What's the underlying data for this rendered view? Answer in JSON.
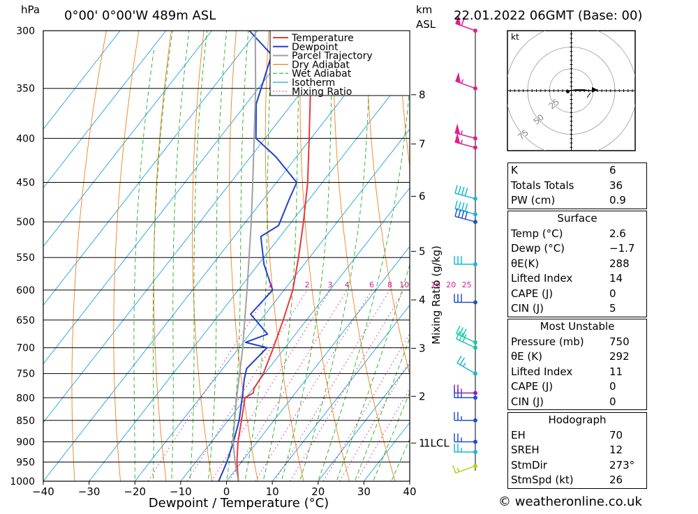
{
  "header": {
    "location": "0°00' 0°00'W 489m ASL",
    "pressure_unit": "hPa",
    "height_unit_line1": "km",
    "height_unit_line2": "ASL",
    "datetime": "22.01.2022 06GMT (Base: 00)"
  },
  "chart_data": {
    "type": "skew-t",
    "title": "0°00' 0°00'W 489m ASL",
    "xlabel": "Dewpoint / Temperature (°C)",
    "ylabel": "hPa",
    "right_label": "Mixing Ratio (g/kg)",
    "xlim": [
      -40,
      40
    ],
    "ylim": [
      1000,
      300
    ],
    "x_ticks": [
      -40,
      -30,
      -20,
      -10,
      0,
      10,
      20,
      30,
      40
    ],
    "x_tick_labels": [
      "−40",
      "−30",
      "−20",
      "−10",
      "0",
      "10",
      "20",
      "30",
      "40"
    ],
    "pressure_levels": [
      300,
      350,
      400,
      450,
      500,
      550,
      600,
      650,
      700,
      750,
      800,
      850,
      900,
      950,
      1000
    ],
    "km_ticks": [
      {
        "km": 8,
        "p": 356
      },
      {
        "km": 7,
        "p": 406
      },
      {
        "km": 6,
        "p": 467
      },
      {
        "km": 5,
        "p": 541
      },
      {
        "km": 4,
        "p": 616
      },
      {
        "km": 3,
        "p": 701
      },
      {
        "km": 2,
        "p": 797
      },
      {
        "km": 1,
        "p": 903
      }
    ],
    "lcl_label": "1LCL",
    "mixing_ratio_labels": [
      "1",
      "2",
      "3",
      "4",
      "6",
      "8",
      "10",
      "16",
      "20",
      "25"
    ],
    "mixing_ratio_values": [
      1,
      2,
      3,
      4,
      6,
      8,
      10,
      16,
      20,
      25
    ],
    "legend": [
      "Temperature",
      "Dewpoint",
      "Parcel Trajectory",
      "Dry Adiabat",
      "Wet Adiabat",
      "Isotherm",
      "Mixing Ratio"
    ],
    "series": [
      {
        "name": "Temperature",
        "color": "#e8393c",
        "points": [
          [
            1000,
            2.6
          ],
          [
            950,
            -1.0
          ],
          [
            900,
            -4.2
          ],
          [
            850,
            -7.1
          ],
          [
            800,
            -10.2
          ],
          [
            790,
            -9.2
          ],
          [
            780,
            -9.8
          ],
          [
            750,
            -10.3
          ],
          [
            700,
            -12.5
          ],
          [
            650,
            -15.1
          ],
          [
            600,
            -18.1
          ],
          [
            550,
            -22.4
          ],
          [
            500,
            -27.4
          ],
          [
            450,
            -33.2
          ],
          [
            400,
            -40.4
          ],
          [
            350,
            -48.6
          ],
          [
            300,
            -56.5
          ]
        ]
      },
      {
        "name": "Dewpoint",
        "color": "#2040d0",
        "points": [
          [
            1000,
            -1.7
          ],
          [
            950,
            -3.2
          ],
          [
            900,
            -5.2
          ],
          [
            850,
            -7.6
          ],
          [
            800,
            -10.8
          ],
          [
            760,
            -13.6
          ],
          [
            740,
            -14.8
          ],
          [
            700,
            -13.9
          ],
          [
            690,
            -19.5
          ],
          [
            675,
            -16.1
          ],
          [
            640,
            -23.2
          ],
          [
            600,
            -22.5
          ],
          [
            560,
            -28.8
          ],
          [
            520,
            -34.2
          ],
          [
            505,
            -32.2
          ],
          [
            470,
            -34.4
          ],
          [
            450,
            -35.6
          ],
          [
            420,
            -44.6
          ],
          [
            400,
            -52.0
          ],
          [
            365,
            -57.8
          ],
          [
            320,
            -62.8
          ],
          [
            300,
            -71.8
          ]
        ]
      },
      {
        "name": "Parcel Trajectory",
        "color": "#a0a0a0",
        "points": [
          [
            1000,
            2.6
          ],
          [
            950,
            -1.4
          ],
          [
            900,
            -5.3
          ],
          [
            850,
            -8.6
          ],
          [
            800,
            -12.0
          ],
          [
            750,
            -15.5
          ],
          [
            700,
            -19.2
          ],
          [
            650,
            -23.5
          ],
          [
            600,
            -28.1
          ],
          [
            550,
            -33.2
          ],
          [
            500,
            -38.8
          ],
          [
            450,
            -45.2
          ],
          [
            400,
            -52.4
          ],
          [
            350,
            -60.6
          ],
          [
            300,
            -70.5
          ]
        ]
      }
    ],
    "isotherms_c": [
      -100,
      -90,
      -80,
      -70,
      -60,
      -50,
      -40,
      -30,
      -20,
      -10,
      0,
      10,
      20,
      30,
      40
    ],
    "dry_adiabats_thetaK": [
      240,
      250,
      260,
      270,
      280,
      290,
      300,
      310,
      320,
      330,
      340,
      350,
      360,
      370,
      380,
      390,
      400,
      410,
      420,
      430,
      440,
      450,
      460,
      470,
      480,
      490,
      500
    ],
    "wet_adiabats_c": [
      -20,
      -16,
      -12,
      -8,
      -4,
      0,
      4,
      8,
      12,
      16,
      20,
      24,
      28,
      32,
      36
    ],
    "wind_barbs": [
      {
        "p": 300,
        "dir": 290,
        "kt": 60,
        "color": "#e0208e"
      },
      {
        "p": 350,
        "dir": 290,
        "kt": 55,
        "color": "#e0208e"
      },
      {
        "p": 400,
        "dir": 285,
        "kt": 55,
        "color": "#e0208e"
      },
      {
        "p": 410,
        "dir": 285,
        "kt": 55,
        "color": "#e0208e"
      },
      {
        "p": 470,
        "dir": 285,
        "kt": 40,
        "color": "#18b8d8"
      },
      {
        "p": 490,
        "dir": 285,
        "kt": 40,
        "color": "#18b8d8"
      },
      {
        "p": 500,
        "dir": 285,
        "kt": 40,
        "color": "#2050d0"
      },
      {
        "p": 560,
        "dir": 270,
        "kt": 30,
        "color": "#18b8d8"
      },
      {
        "p": 620,
        "dir": 270,
        "kt": 30,
        "color": "#2050d0"
      },
      {
        "p": 690,
        "dir": 295,
        "kt": 30,
        "color": "#18c8a8"
      },
      {
        "p": 700,
        "dir": 295,
        "kt": 30,
        "color": "#18c8a8"
      },
      {
        "p": 750,
        "dir": 300,
        "kt": 25,
        "color": "#18b8c8"
      },
      {
        "p": 790,
        "dir": 270,
        "kt": 25,
        "color": "#9020b0"
      },
      {
        "p": 800,
        "dir": 270,
        "kt": 25,
        "color": "#2050d0"
      },
      {
        "p": 850,
        "dir": 270,
        "kt": 25,
        "color": "#2050d0"
      },
      {
        "p": 900,
        "dir": 270,
        "kt": 25,
        "color": "#2050d0"
      },
      {
        "p": 925,
        "dir": 270,
        "kt": 25,
        "color": "#18b8d8"
      },
      {
        "p": 960,
        "dir": 250,
        "kt": 15,
        "color": "#b0d020"
      }
    ],
    "hodograph": {
      "units_label": "kt",
      "ring_labels": [
        "25",
        "50",
        "75"
      ],
      "points_kt": [
        [
          -4,
          -1
        ],
        [
          -2,
          0
        ],
        [
          6,
          1
        ],
        [
          14,
          1
        ],
        [
          20,
          0
        ],
        [
          26,
          0
        ],
        [
          30,
          1
        ]
      ]
    }
  },
  "stats": {
    "indices": [
      {
        "label": "K",
        "value": "6"
      },
      {
        "label": "Totals Totals",
        "value": "36"
      },
      {
        "label": "PW (cm)",
        "value": "0.9"
      }
    ],
    "surface": {
      "title": "Surface",
      "rows": [
        {
          "label": "Temp (°C)",
          "value": "2.6"
        },
        {
          "label": "Dewp (°C)",
          "value": "−1.7"
        },
        {
          "label": "θE(K)",
          "value": "288"
        },
        {
          "label": "Lifted Index",
          "value": "14"
        },
        {
          "label": "CAPE (J)",
          "value": "0"
        },
        {
          "label": "CIN (J)",
          "value": "5"
        }
      ]
    },
    "most_unstable": {
      "title": "Most Unstable",
      "rows": [
        {
          "label": "Pressure (mb)",
          "value": "750"
        },
        {
          "label": "θE (K)",
          "value": "292"
        },
        {
          "label": "Lifted Index",
          "value": "11"
        },
        {
          "label": "CAPE (J)",
          "value": "0"
        },
        {
          "label": "CIN (J)",
          "value": "0"
        }
      ]
    },
    "hodograph": {
      "title": "Hodograph",
      "rows": [
        {
          "label": "EH",
          "value": "70"
        },
        {
          "label": "SREH",
          "value": "12"
        },
        {
          "label": "StmDir",
          "value": "273°"
        },
        {
          "label": "StmSpd (kt)",
          "value": "26"
        }
      ]
    }
  },
  "footer": {
    "credit": "© weatheronline.co.uk"
  },
  "colors": {
    "temperature": "#e8393c",
    "dewpoint": "#2040d0",
    "parcel": "#a0a0a0",
    "dry_adiabat": "#f08020",
    "wet_adiabat": "#20b020",
    "isotherm": "#20a0e0",
    "mixing_ratio": "#d0208e"
  }
}
